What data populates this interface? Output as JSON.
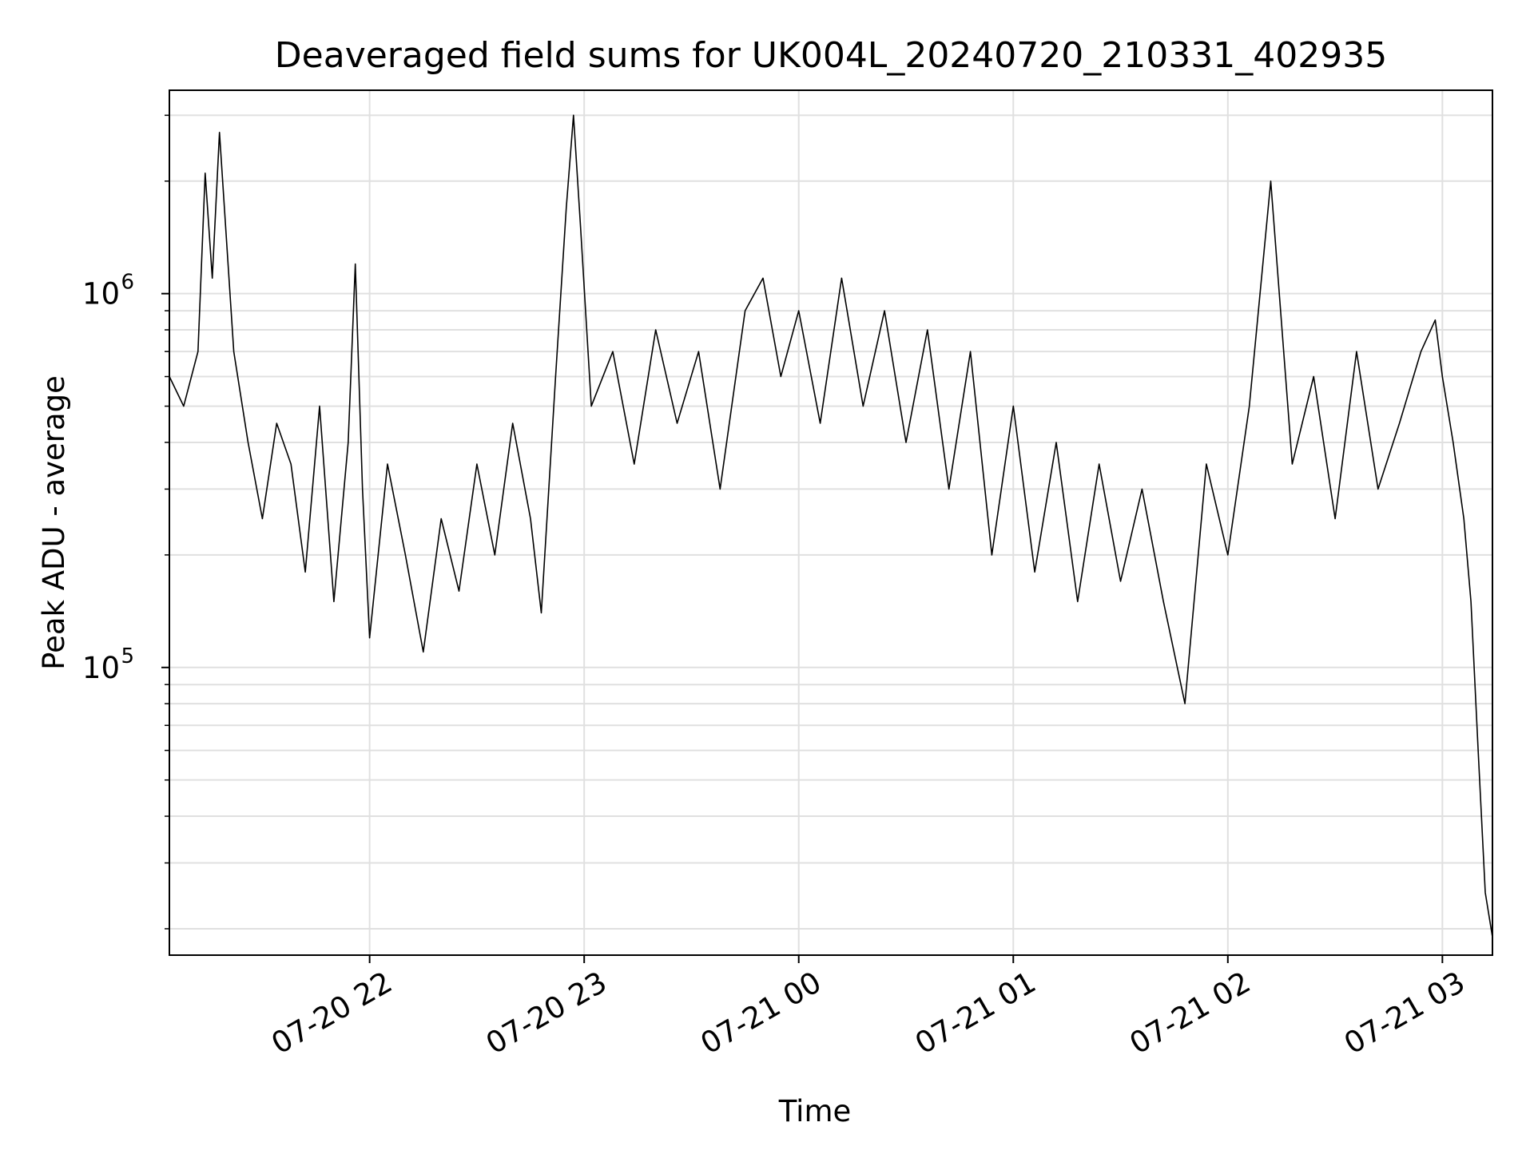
{
  "chart_data": {
    "type": "line",
    "title": "Deaveraged field sums for UK004L_20240720_210331_402935",
    "xlabel": "Time",
    "ylabel": "Peak ADU - average",
    "yscale": "log",
    "ylim": [
      17000,
      3500000
    ],
    "xlim": [
      "2024-07-20 21:04",
      "2024-07-21 03:14"
    ],
    "grid": true,
    "line_color": "#000000",
    "grid_color": "#e0e0e0",
    "x_ticks": [
      {
        "value": "2024-07-20 22:00",
        "label": "07-20 22"
      },
      {
        "value": "2024-07-20 23:00",
        "label": "07-20 23"
      },
      {
        "value": "2024-07-21 00:00",
        "label": "07-21 00"
      },
      {
        "value": "2024-07-21 01:00",
        "label": "07-21 01"
      },
      {
        "value": "2024-07-21 02:00",
        "label": "07-21 02"
      },
      {
        "value": "2024-07-21 03:00",
        "label": "07-21 03"
      }
    ],
    "y_ticks": [
      {
        "value": 100000,
        "base": "10",
        "exp": "5"
      },
      {
        "value": 1000000,
        "base": "10",
        "exp": "6"
      }
    ],
    "series": [
      {
        "name": "",
        "points": [
          [
            "2024-07-20 21:04",
            600000
          ],
          [
            "2024-07-20 21:08",
            500000
          ],
          [
            "2024-07-20 21:12",
            700000
          ],
          [
            "2024-07-20 21:14",
            2100000
          ],
          [
            "2024-07-20 21:16",
            1100000
          ],
          [
            "2024-07-20 21:18",
            2700000
          ],
          [
            "2024-07-20 21:22",
            700000
          ],
          [
            "2024-07-20 21:26",
            400000
          ],
          [
            "2024-07-20 21:30",
            250000
          ],
          [
            "2024-07-20 21:34",
            450000
          ],
          [
            "2024-07-20 21:38",
            350000
          ],
          [
            "2024-07-20 21:42",
            180000
          ],
          [
            "2024-07-20 21:46",
            500000
          ],
          [
            "2024-07-20 21:50",
            150000
          ],
          [
            "2024-07-20 21:54",
            400000
          ],
          [
            "2024-07-20 21:56",
            1200000
          ],
          [
            "2024-07-20 21:58",
            300000
          ],
          [
            "2024-07-20 22:00",
            120000
          ],
          [
            "2024-07-20 22:05",
            350000
          ],
          [
            "2024-07-20 22:10",
            200000
          ],
          [
            "2024-07-20 22:15",
            110000
          ],
          [
            "2024-07-20 22:20",
            250000
          ],
          [
            "2024-07-20 22:25",
            160000
          ],
          [
            "2024-07-20 22:30",
            350000
          ],
          [
            "2024-07-20 22:35",
            200000
          ],
          [
            "2024-07-20 22:40",
            450000
          ],
          [
            "2024-07-20 22:45",
            250000
          ],
          [
            "2024-07-20 22:48",
            140000
          ],
          [
            "2024-07-20 22:52",
            600000
          ],
          [
            "2024-07-20 22:55",
            1700000
          ],
          [
            "2024-07-20 22:57",
            3000000
          ],
          [
            "2024-07-20 22:59",
            1500000
          ],
          [
            "2024-07-20 23:02",
            500000
          ],
          [
            "2024-07-20 23:08",
            700000
          ],
          [
            "2024-07-20 23:14",
            350000
          ],
          [
            "2024-07-20 23:20",
            800000
          ],
          [
            "2024-07-20 23:26",
            450000
          ],
          [
            "2024-07-20 23:32",
            700000
          ],
          [
            "2024-07-20 23:38",
            300000
          ],
          [
            "2024-07-20 23:45",
            900000
          ],
          [
            "2024-07-20 23:50",
            1100000
          ],
          [
            "2024-07-20 23:55",
            600000
          ],
          [
            "2024-07-21 00:00",
            900000
          ],
          [
            "2024-07-21 00:06",
            450000
          ],
          [
            "2024-07-21 00:12",
            1100000
          ],
          [
            "2024-07-21 00:18",
            500000
          ],
          [
            "2024-07-21 00:24",
            900000
          ],
          [
            "2024-07-21 00:30",
            400000
          ],
          [
            "2024-07-21 00:36",
            800000
          ],
          [
            "2024-07-21 00:42",
            300000
          ],
          [
            "2024-07-21 00:48",
            700000
          ],
          [
            "2024-07-21 00:54",
            200000
          ],
          [
            "2024-07-21 01:00",
            500000
          ],
          [
            "2024-07-21 01:06",
            180000
          ],
          [
            "2024-07-21 01:12",
            400000
          ],
          [
            "2024-07-21 01:18",
            150000
          ],
          [
            "2024-07-21 01:24",
            350000
          ],
          [
            "2024-07-21 01:30",
            170000
          ],
          [
            "2024-07-21 01:36",
            300000
          ],
          [
            "2024-07-21 01:42",
            150000
          ],
          [
            "2024-07-21 01:48",
            80000
          ],
          [
            "2024-07-21 01:54",
            350000
          ],
          [
            "2024-07-21 02:00",
            200000
          ],
          [
            "2024-07-21 02:06",
            500000
          ],
          [
            "2024-07-21 02:12",
            2000000
          ],
          [
            "2024-07-21 02:18",
            350000
          ],
          [
            "2024-07-21 02:24",
            600000
          ],
          [
            "2024-07-21 02:30",
            250000
          ],
          [
            "2024-07-21 02:36",
            700000
          ],
          [
            "2024-07-21 02:42",
            300000
          ],
          [
            "2024-07-21 02:48",
            450000
          ],
          [
            "2024-07-21 02:54",
            700000
          ],
          [
            "2024-07-21 02:58",
            850000
          ],
          [
            "2024-07-21 03:00",
            600000
          ],
          [
            "2024-07-21 03:03",
            400000
          ],
          [
            "2024-07-21 03:06",
            250000
          ],
          [
            "2024-07-21 03:08",
            150000
          ],
          [
            "2024-07-21 03:10",
            60000
          ],
          [
            "2024-07-21 03:12",
            25000
          ],
          [
            "2024-07-21 03:14",
            19000
          ]
        ]
      }
    ]
  }
}
